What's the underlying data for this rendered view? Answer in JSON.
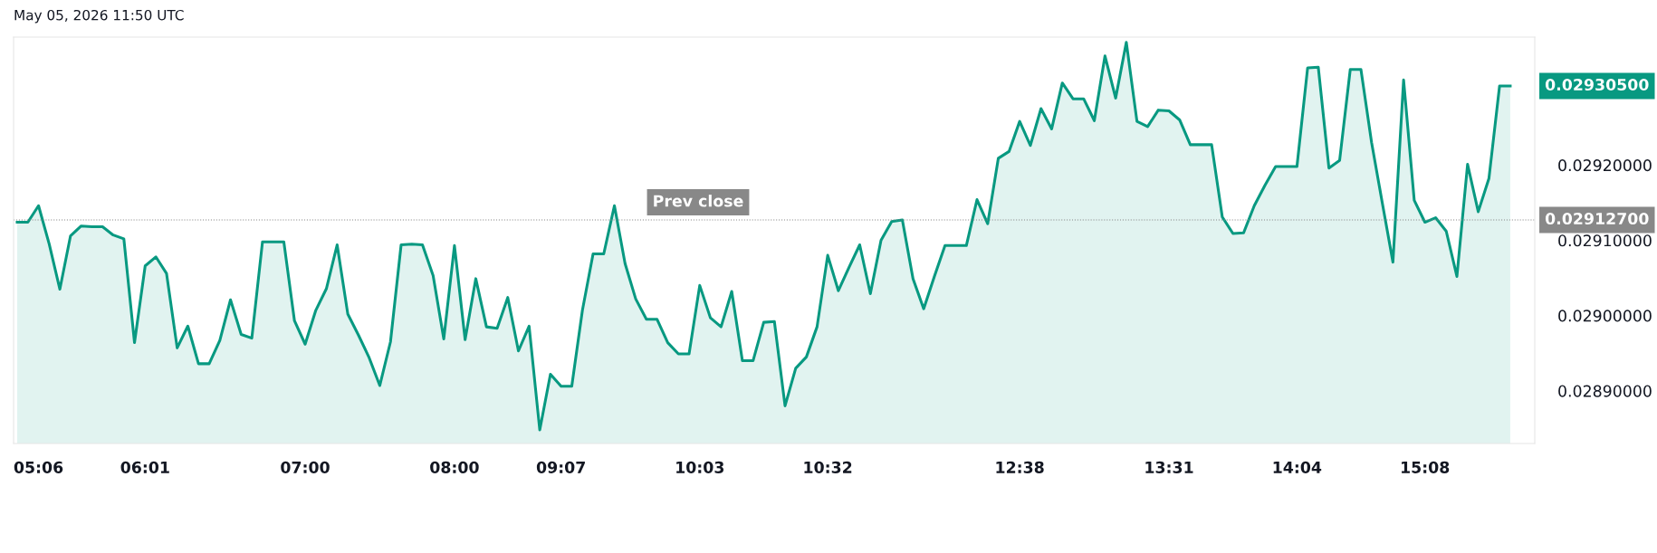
{
  "chart_data": {
    "type": "area",
    "title": "May 05, 2026 11:50 UTC",
    "categories": [
      null,
      null,
      "05:06",
      null,
      null,
      null,
      null,
      null,
      null,
      null,
      null,
      null,
      "06:01",
      null,
      null,
      null,
      null,
      null,
      null,
      null,
      null,
      null,
      null,
      null,
      null,
      null,
      null,
      "07:00",
      null,
      null,
      null,
      null,
      null,
      null,
      null,
      null,
      null,
      null,
      null,
      null,
      null,
      "08:00",
      null,
      null,
      null,
      null,
      null,
      null,
      null,
      null,
      null,
      "09:07",
      null,
      null,
      null,
      null,
      null,
      null,
      null,
      null,
      null,
      null,
      null,
      null,
      "10:03",
      null,
      null,
      null,
      null,
      null,
      null,
      null,
      null,
      null,
      null,
      null,
      "10:32",
      null,
      null,
      null,
      null,
      null,
      null,
      null,
      null,
      null,
      null,
      null,
      null,
      null,
      null,
      null,
      null,
      null,
      "12:38",
      null,
      null,
      null,
      null,
      null,
      null,
      null,
      null,
      null,
      null,
      null,
      null,
      null,
      "13:31",
      null,
      null,
      null,
      null,
      null,
      null,
      null,
      null,
      null,
      null,
      null,
      "14:04",
      null,
      null,
      null,
      null,
      null,
      null,
      null,
      null,
      null,
      null,
      null,
      "15:08",
      null,
      null,
      null,
      null,
      null,
      null,
      null,
      null
    ],
    "series": [
      {
        "color": "#089981",
        "values": [
          0.029124,
          0.029124,
          0.029146,
          0.029095,
          0.029035,
          0.029106,
          0.029119,
          0.029118,
          0.029118,
          0.029107,
          0.029102,
          0.028964,
          0.029066,
          0.029078,
          0.029056,
          0.028957,
          0.028986,
          0.028936,
          0.028936,
          0.028967,
          0.029021,
          0.028975,
          0.02897,
          0.029098,
          0.029098,
          0.029098,
          0.028993,
          0.028962,
          0.029007,
          0.029036,
          0.029094,
          0.029002,
          0.028974,
          0.028944,
          0.028907,
          0.028965,
          0.029094,
          0.029095,
          0.029094,
          0.029053,
          0.028969,
          0.029093,
          0.028968,
          0.029049,
          0.028985,
          0.028983,
          0.029024,
          0.028953,
          0.028986,
          0.028848,
          0.028922,
          0.028906,
          0.028906,
          0.029007,
          0.029082,
          0.029082,
          0.029146,
          0.029069,
          0.029022,
          0.028995,
          0.028995,
          0.028964,
          0.028949,
          0.028949,
          0.02904,
          0.028997,
          0.028985,
          0.029032,
          0.02894,
          0.02894,
          0.028991,
          0.028992,
          0.02888,
          0.02893,
          0.028945,
          0.028985,
          0.02908,
          0.029033,
          0.029064,
          0.029094,
          0.029029,
          0.0291,
          0.029125,
          0.029127,
          0.029049,
          0.029009,
          0.029052,
          0.029093,
          0.029093,
          0.029093,
          0.029154,
          0.029122,
          0.029209,
          0.029218,
          0.029258,
          0.029226,
          0.029275,
          0.029248,
          0.029309,
          0.029288,
          0.029288,
          0.029259,
          0.029345,
          0.029289,
          0.029363,
          0.029258,
          0.029251,
          0.029273,
          0.029272,
          0.02926,
          0.029227,
          0.029227,
          0.029227,
          0.029131,
          0.029109,
          0.02911,
          0.029146,
          0.029173,
          0.029198,
          0.029198,
          0.029198,
          0.029329,
          0.02933,
          0.029196,
          0.029206,
          0.029327,
          0.029327,
          0.02923,
          0.02915,
          0.029071,
          0.029313,
          0.029153,
          0.029124,
          0.02913,
          0.029112,
          0.029052,
          0.029201,
          0.029138,
          0.029182,
          0.029305,
          0.029305
        ]
      }
    ],
    "ylim": [
      0.02883,
      0.02937
    ],
    "yticks": [
      {
        "value": 0.0289,
        "label": "0.02890000"
      },
      {
        "value": 0.029,
        "label": "0.02900000"
      },
      {
        "value": 0.0291,
        "label": "0.02910000"
      },
      {
        "value": 0.0292,
        "label": "0.02920000"
      }
    ],
    "ref_lines": [
      {
        "axis": "y",
        "value": 0.029127,
        "label": "Prev close",
        "color": "#888888",
        "line_style": "dotted"
      }
    ],
    "annotations": [
      "0.02930500",
      "0.02912700"
    ],
    "grid": false,
    "legend": false
  }
}
